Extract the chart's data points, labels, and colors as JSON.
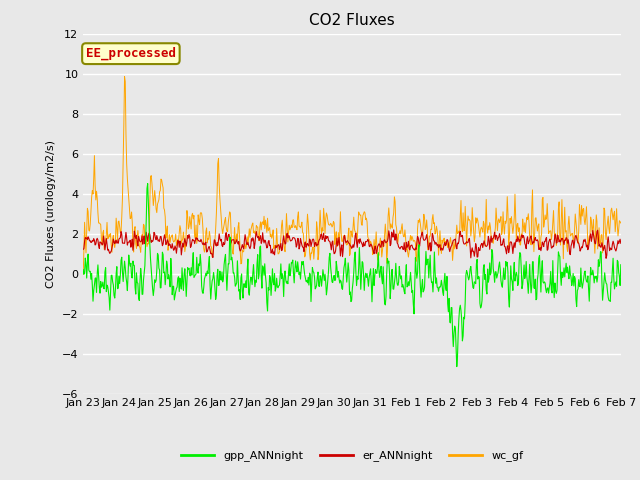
{
  "title": "CO2 Fluxes",
  "ylabel": "CO2 Fluxes (urology/m2/s)",
  "xlabel": "",
  "ylim": [
    -6,
    12
  ],
  "yticks": [
    -6,
    -4,
    -2,
    0,
    2,
    4,
    6,
    8,
    10,
    12
  ],
  "legend_labels": [
    "gpp_ANNnight",
    "er_ANNnight",
    "wc_gf"
  ],
  "line_colors": [
    "#00ee00",
    "#cc0000",
    "#ffa500"
  ],
  "annotation_text": "EE_processed",
  "annotation_color": "#cc0000",
  "annotation_bg": "#ffffcc",
  "annotation_border": "#888800",
  "background_color": "#e8e8e8",
  "plot_bg_color": "#e8e8e8",
  "n_points": 768,
  "seed": 42,
  "x_tick_labels": [
    "Jan 23",
    "Jan 24",
    "Jan 25",
    "Jan 26",
    "Jan 27",
    "Jan 28",
    "Jan 29",
    "Jan 30",
    "Jan 31",
    "Feb 1",
    "Feb 2",
    "Feb 3",
    "Feb 4",
    "Feb 5",
    "Feb 6",
    "Feb 7"
  ],
  "title_fontsize": 11,
  "label_fontsize": 8,
  "tick_fontsize": 8
}
